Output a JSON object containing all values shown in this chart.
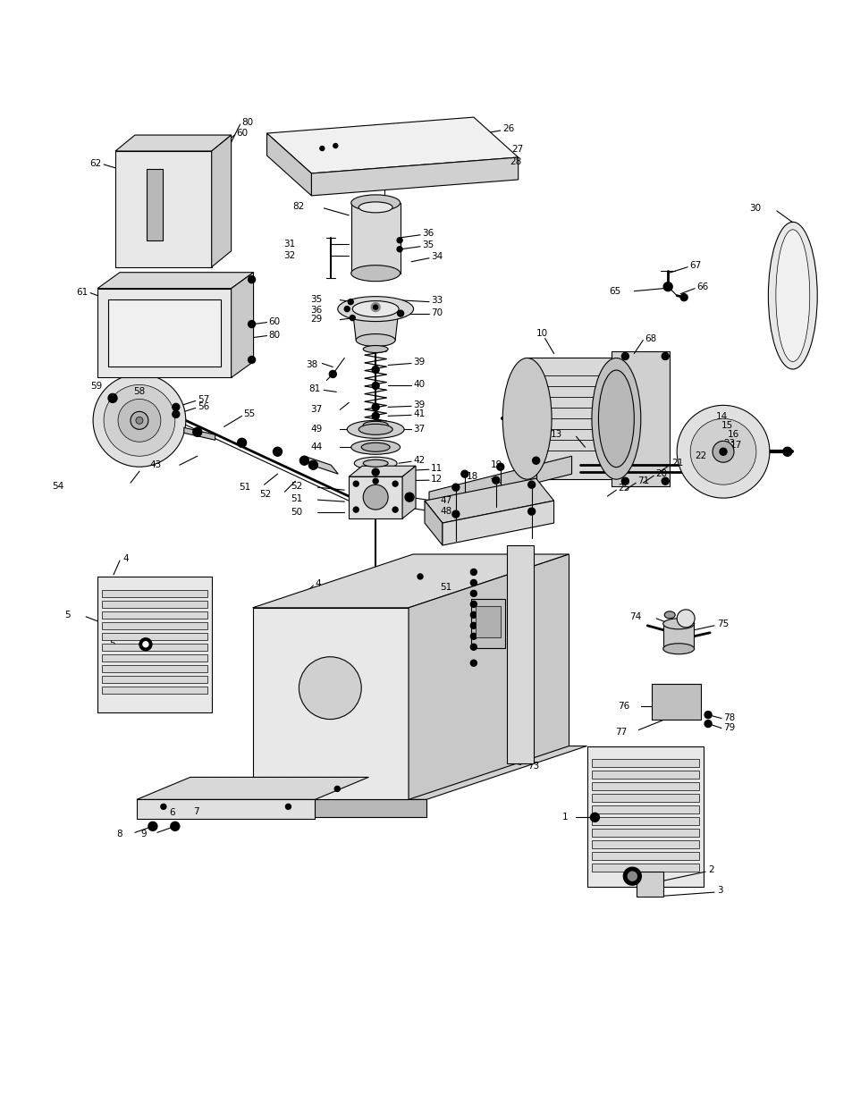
{
  "background_color": "#ffffff",
  "line_color": "#000000",
  "figsize": [
    9.54,
    12.35
  ],
  "dpi": 100
}
